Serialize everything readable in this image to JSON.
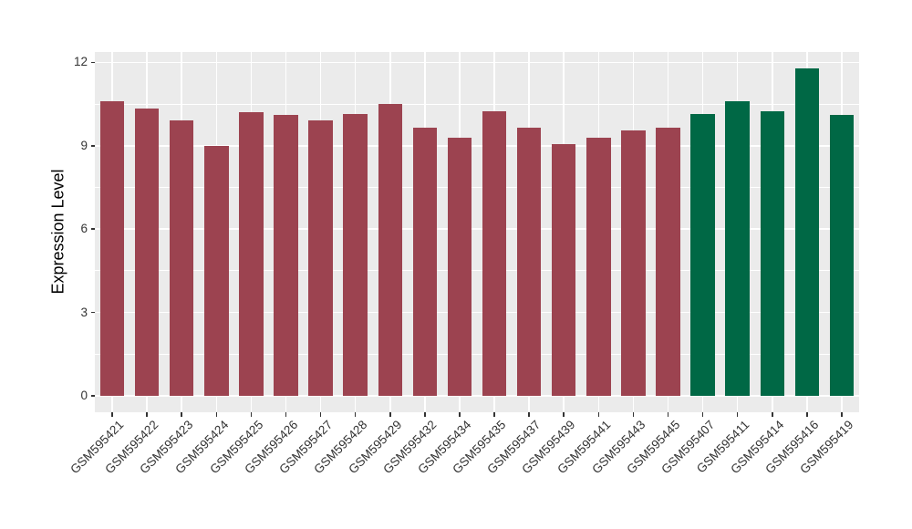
{
  "chart_data": {
    "type": "bar",
    "title": "",
    "xlabel": "",
    "ylabel": "Expression Level",
    "ylim": [
      0,
      12.4
    ],
    "yticks": [
      0,
      3,
      6,
      9,
      12
    ],
    "yticks_minor": [
      1.5,
      4.5,
      7.5,
      10.5
    ],
    "grid": "white major and minor horizontal lines plus vertical line at each category center, on gray panel",
    "legend": "none",
    "categories": [
      "GSM595421",
      "GSM595422",
      "GSM595423",
      "GSM595424",
      "GSM595425",
      "GSM595426",
      "GSM595427",
      "GSM595428",
      "GSM595429",
      "GSM595432",
      "GSM595434",
      "GSM595435",
      "GSM595437",
      "GSM595439",
      "GSM595441",
      "GSM595443",
      "GSM595445",
      "GSM595407",
      "GSM595411",
      "GSM595414",
      "GSM595416",
      "GSM595419"
    ],
    "values": [
      10.6,
      10.35,
      9.9,
      9.0,
      10.2,
      10.1,
      9.9,
      10.15,
      10.5,
      9.65,
      9.3,
      10.25,
      9.65,
      9.05,
      9.3,
      9.55,
      9.65,
      10.15,
      10.6,
      10.25,
      11.8,
      10.1
    ],
    "groups": [
      "g1",
      "g1",
      "g1",
      "g1",
      "g1",
      "g1",
      "g1",
      "g1",
      "g1",
      "g1",
      "g1",
      "g1",
      "g1",
      "g1",
      "g1",
      "g1",
      "g1",
      "g2",
      "g2",
      "g2",
      "g2",
      "g2"
    ],
    "colors": {
      "g1": "#9C4350",
      "g2": "#006845",
      "panel_bg": "#EBEBEB",
      "grid": "#FFFFFF",
      "axis_text": "#333333",
      "axis_title": "#000000",
      "background": "#FFFFFF"
    }
  }
}
